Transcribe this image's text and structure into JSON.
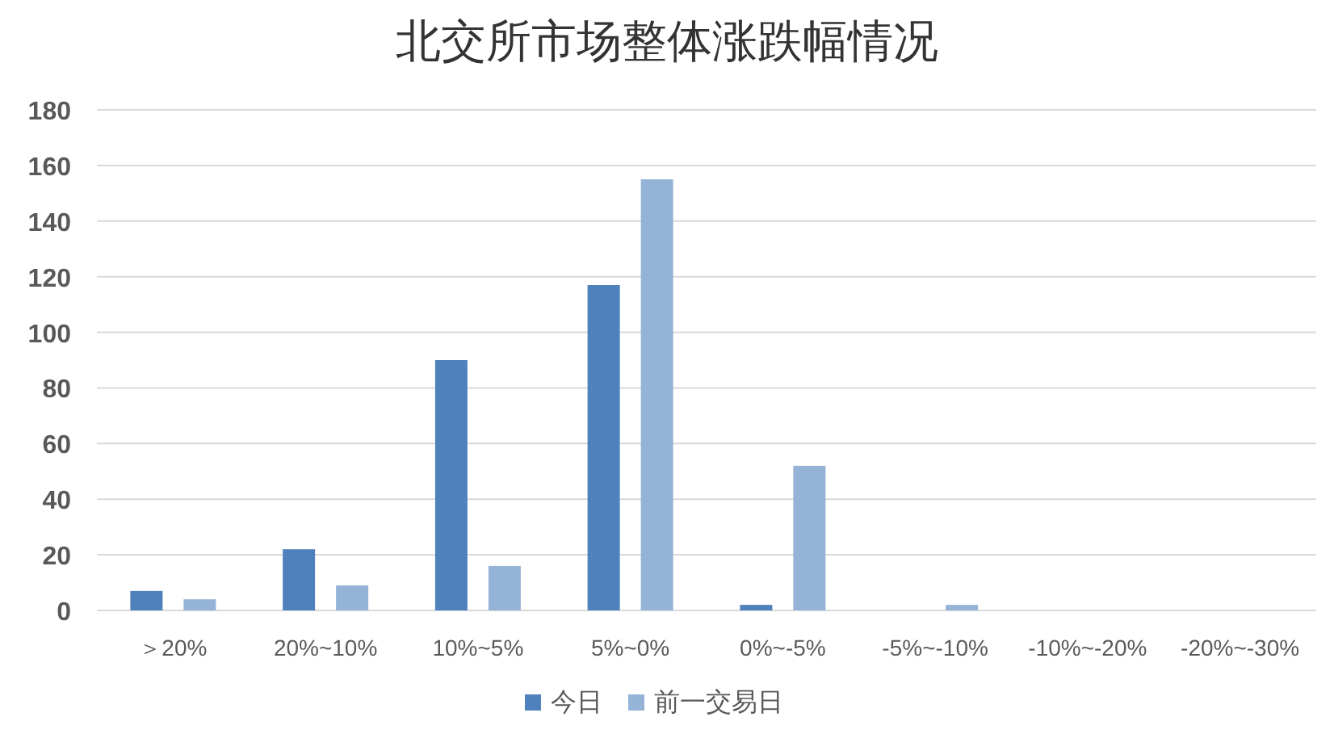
{
  "chart_data": {
    "type": "bar",
    "title": "北交所市场整体涨跌幅情况",
    "categories": [
      "＞20%",
      "20%~10%",
      "10%~5%",
      "5%~0%",
      "0%~-5%",
      "-5%~-10%",
      "-10%~-20%",
      "-20%~-30%"
    ],
    "series": [
      {
        "name": "今日",
        "color": "#4f81bd",
        "values": [
          7,
          22,
          90,
          117,
          2,
          0,
          0,
          0
        ]
      },
      {
        "name": "前一交易日",
        "color": "#95b3d7",
        "values": [
          4,
          9,
          16,
          155,
          52,
          2,
          0,
          0
        ]
      }
    ],
    "ylim": [
      0,
      180
    ],
    "yticks": [
      0,
      20,
      40,
      60,
      80,
      100,
      120,
      140,
      160,
      180
    ],
    "grid": "y",
    "legend": "bottom"
  }
}
